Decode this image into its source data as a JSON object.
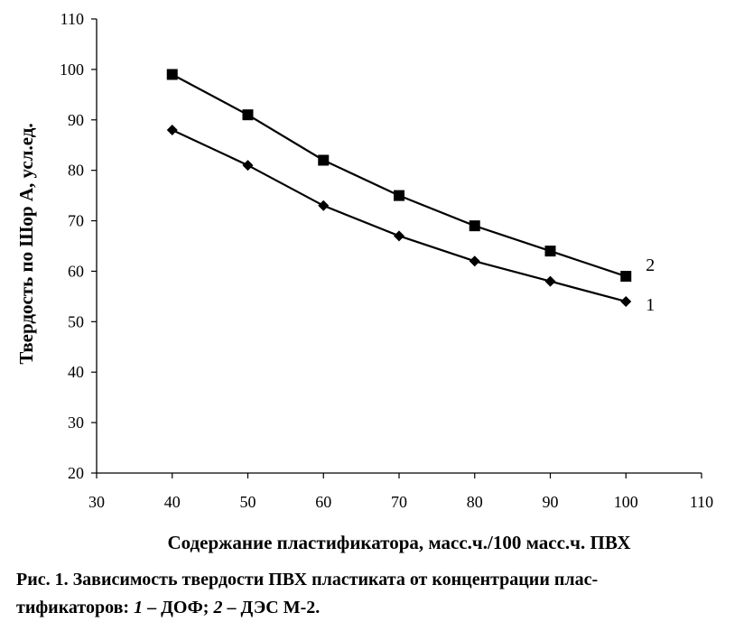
{
  "chart_data": {
    "type": "line",
    "title": "",
    "xlabel": "Содержание пластификатора, масс.ч./100 масс.ч. ПВХ",
    "ylabel": "Твердость по Шор А, усл.ед.",
    "xlim": [
      30,
      110
    ],
    "ylim": [
      20,
      110
    ],
    "xticks": [
      30,
      40,
      50,
      60,
      70,
      80,
      90,
      100,
      110
    ],
    "yticks": [
      20,
      30,
      40,
      50,
      60,
      70,
      80,
      90,
      100,
      110
    ],
    "x": [
      40,
      50,
      60,
      70,
      80,
      90,
      100
    ],
    "grid": false,
    "series": [
      {
        "name": "1",
        "marker": "diamond",
        "color": "#000000",
        "values": [
          88,
          81,
          73,
          67,
          62,
          58,
          54
        ]
      },
      {
        "name": "2",
        "marker": "square",
        "color": "#000000",
        "values": [
          99,
          91,
          82,
          75,
          69,
          64,
          59
        ]
      }
    ]
  },
  "caption": {
    "prefix": "Рис. 1. Зависимость твердости ПВХ пластиката от концентрации плас-",
    "line2_start": "тификаторов: ",
    "n1": "1",
    "t1": " – ДОФ; ",
    "n2": "2",
    "t2": " – ДЭС М-2."
  }
}
